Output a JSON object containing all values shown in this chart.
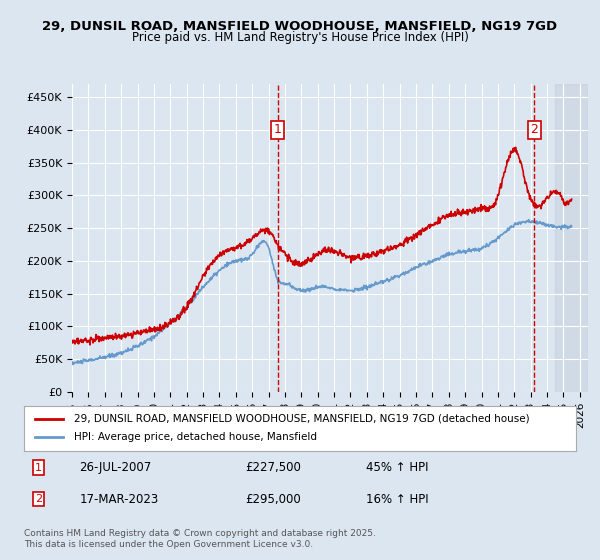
{
  "title1": "29, DUNSIL ROAD, MANSFIELD WOODHOUSE, MANSFIELD, NG19 7GD",
  "title2": "Price paid vs. HM Land Registry's House Price Index (HPI)",
  "ylabel": "",
  "background_color": "#dce6f1",
  "plot_bg_color": "#dce6f1",
  "grid_color": "#ffffff",
  "hatch_color": "#c0c8d8",
  "ylim": [
    0,
    470000
  ],
  "yticks": [
    0,
    50000,
    100000,
    150000,
    200000,
    250000,
    300000,
    350000,
    400000,
    450000
  ],
  "xlim_start": 1995.0,
  "xlim_end": 2026.5,
  "xtick_years": [
    1995,
    1996,
    1997,
    1998,
    1999,
    2000,
    2001,
    2002,
    2003,
    2004,
    2005,
    2006,
    2007,
    2008,
    2009,
    2010,
    2011,
    2012,
    2013,
    2014,
    2015,
    2016,
    2017,
    2018,
    2019,
    2020,
    2021,
    2022,
    2023,
    2024,
    2025,
    2026
  ],
  "sale1_x": 2007.569,
  "sale1_y": 227500,
  "sale1_label": "1",
  "sale2_x": 2023.208,
  "sale2_y": 295000,
  "sale2_label": "2",
  "legend_line1": "29, DUNSIL ROAD, MANSFIELD WOODHOUSE, MANSFIELD, NG19 7GD (detached house)",
  "legend_line2": "HPI: Average price, detached house, Mansfield",
  "annotation1": "1    26-JUL-2007        £227,500        45% ↑ HPI",
  "annotation2": "2    17-MAR-2023        £295,000        16% ↑ HPI",
  "footer": "Contains HM Land Registry data © Crown copyright and database right 2025.\nThis data is licensed under the Open Government Licence v3.0.",
  "line_red": "#cc0000",
  "line_blue": "#6699cc",
  "future_hatch_alpha": 0.3
}
